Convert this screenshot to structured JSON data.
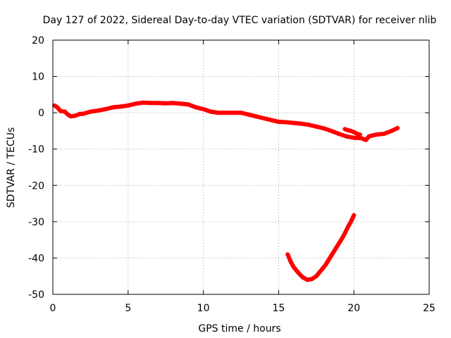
{
  "chart_data": {
    "type": "scatter",
    "title": "Day 127 of 2022, Sidereal Day-to-day VTEC variation (SDTVAR) for receiver nlib",
    "xlabel": "GPS time / hours",
    "ylabel": "SDTVAR / TECUs",
    "xlim": [
      0,
      25
    ],
    "ylim": [
      -50,
      20
    ],
    "xticks": [
      0,
      5,
      10,
      15,
      20,
      25
    ],
    "yticks": [
      -50,
      -40,
      -30,
      -20,
      -10,
      0,
      10,
      20
    ],
    "xtick_labels": [
      "0",
      "5",
      "10",
      "15",
      "20",
      "25"
    ],
    "ytick_labels": [
      "-50",
      "-40",
      "-30",
      "-20",
      "-10",
      "0",
      "10",
      "20"
    ],
    "grid": true,
    "marker_color": "#ff0000",
    "series": [
      {
        "name": "SDTVAR main",
        "points": [
          [
            0.1,
            2.0
          ],
          [
            0.3,
            1.5
          ],
          [
            0.5,
            0.5
          ],
          [
            0.8,
            0.3
          ],
          [
            1.0,
            -0.5
          ],
          [
            1.2,
            -1.0
          ],
          [
            1.5,
            -0.8
          ],
          [
            1.8,
            -0.3
          ],
          [
            2.0,
            -0.3
          ],
          [
            2.5,
            0.3
          ],
          [
            3.0,
            0.6
          ],
          [
            3.5,
            1.0
          ],
          [
            4.0,
            1.5
          ],
          [
            4.5,
            1.7
          ],
          [
            5.0,
            2.0
          ],
          [
            5.5,
            2.5
          ],
          [
            6.0,
            2.8
          ],
          [
            6.5,
            2.7
          ],
          [
            7.0,
            2.7
          ],
          [
            7.5,
            2.6
          ],
          [
            8.0,
            2.7
          ],
          [
            8.5,
            2.5
          ],
          [
            9.0,
            2.3
          ],
          [
            9.5,
            1.5
          ],
          [
            10.0,
            1.0
          ],
          [
            10.5,
            0.3
          ],
          [
            11.0,
            0.0
          ],
          [
            11.5,
            0.0
          ],
          [
            12.0,
            0.0
          ],
          [
            12.5,
            0.0
          ],
          [
            13.0,
            -0.5
          ],
          [
            13.5,
            -1.0
          ],
          [
            14.0,
            -1.5
          ],
          [
            14.5,
            -2.0
          ],
          [
            15.0,
            -2.5
          ],
          [
            15.5,
            -2.6
          ],
          [
            16.0,
            -2.8
          ],
          [
            16.5,
            -3.0
          ],
          [
            17.0,
            -3.3
          ],
          [
            17.5,
            -3.8
          ],
          [
            18.0,
            -4.3
          ],
          [
            18.5,
            -5.0
          ],
          [
            19.0,
            -5.8
          ],
          [
            19.5,
            -6.5
          ],
          [
            20.0,
            -6.9
          ],
          [
            20.5,
            -7.0
          ],
          [
            20.8,
            -7.5
          ],
          [
            21.0,
            -6.5
          ],
          [
            21.5,
            -6.0
          ],
          [
            22.0,
            -5.8
          ],
          [
            22.5,
            -5.0
          ],
          [
            22.9,
            -4.2
          ]
        ]
      },
      {
        "name": "SDTVAR branch",
        "points": [
          [
            19.4,
            -4.5
          ],
          [
            19.6,
            -4.8
          ],
          [
            19.8,
            -5.0
          ],
          [
            20.0,
            -5.3
          ],
          [
            20.2,
            -5.8
          ],
          [
            20.4,
            -6.0
          ]
        ]
      },
      {
        "name": "SDTVAR arc",
        "points": [
          [
            15.6,
            -39.0
          ],
          [
            15.8,
            -41.0
          ],
          [
            16.0,
            -42.5
          ],
          [
            16.3,
            -44.0
          ],
          [
            16.6,
            -45.3
          ],
          [
            16.9,
            -46.0
          ],
          [
            17.2,
            -45.8
          ],
          [
            17.5,
            -45.0
          ],
          [
            17.8,
            -43.5
          ],
          [
            18.1,
            -42.0
          ],
          [
            18.4,
            -40.0
          ],
          [
            18.7,
            -38.0
          ],
          [
            19.0,
            -36.0
          ],
          [
            19.3,
            -34.0
          ],
          [
            19.6,
            -31.5
          ],
          [
            19.8,
            -30.0
          ],
          [
            20.0,
            -28.2
          ]
        ]
      }
    ]
  }
}
